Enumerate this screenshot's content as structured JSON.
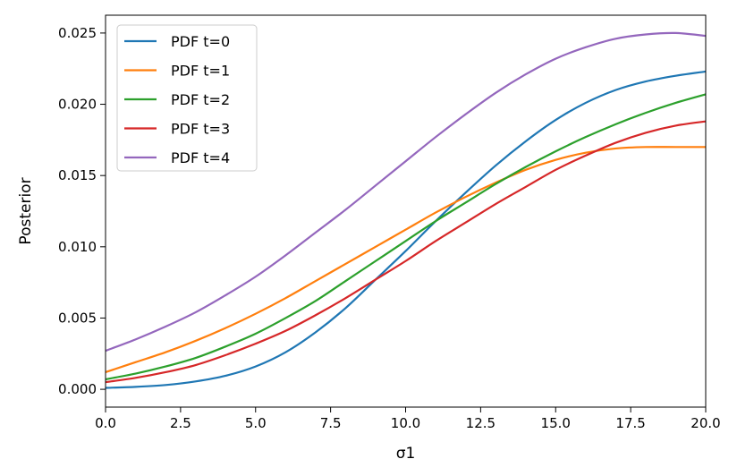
{
  "chart_data": {
    "type": "line",
    "title": "",
    "xlabel": "σ1",
    "ylabel": "Posterior",
    "xlim": [
      0,
      20
    ],
    "ylim": [
      -0.00125,
      0.02625
    ],
    "xticks": [
      0.0,
      2.5,
      5.0,
      7.5,
      10.0,
      12.5,
      15.0,
      17.5,
      20.0
    ],
    "xtick_labels": [
      "0.0",
      "2.5",
      "5.0",
      "7.5",
      "10.0",
      "12.5",
      "15.0",
      "17.5",
      "20.0"
    ],
    "yticks": [
      0.0,
      0.005,
      0.01,
      0.015,
      0.02,
      0.025
    ],
    "ytick_labels": [
      "0.000",
      "0.005",
      "0.010",
      "0.015",
      "0.020",
      "0.025"
    ],
    "grid": false,
    "legend_position": "upper-left",
    "x": [
      0,
      1,
      2,
      3,
      4,
      5,
      6,
      7,
      8,
      9,
      10,
      11,
      12,
      13,
      14,
      15,
      16,
      17,
      18,
      19,
      20
    ],
    "series": [
      {
        "name": "PDF t=0",
        "color": "#1f77b4",
        "values": [
          0.0001,
          0.00017,
          0.0003,
          0.00055,
          0.00095,
          0.0016,
          0.0026,
          0.004,
          0.0057,
          0.0077,
          0.0097,
          0.0118,
          0.0138,
          0.0157,
          0.0174,
          0.0189,
          0.0201,
          0.021,
          0.0216,
          0.022,
          0.0223
        ]
      },
      {
        "name": "PDF t=1",
        "color": "#ff7f0e",
        "values": [
          0.0012,
          0.0019,
          0.0026,
          0.0034,
          0.0043,
          0.0053,
          0.0064,
          0.0076,
          0.0088,
          0.01,
          0.0112,
          0.0124,
          0.0135,
          0.0145,
          0.0154,
          0.0161,
          0.0166,
          0.0169,
          0.017,
          0.017,
          0.017
        ]
      },
      {
        "name": "PDF t=2",
        "color": "#2ca02c",
        "values": [
          0.0007,
          0.0011,
          0.0016,
          0.0022,
          0.003,
          0.0039,
          0.005,
          0.0062,
          0.0076,
          0.009,
          0.0104,
          0.0118,
          0.0131,
          0.0144,
          0.0156,
          0.0167,
          0.0177,
          0.0186,
          0.0194,
          0.0201,
          0.0207
        ]
      },
      {
        "name": "PDF t=3",
        "color": "#d62728",
        "values": [
          0.0005,
          0.0008,
          0.0012,
          0.0017,
          0.0024,
          0.0032,
          0.0041,
          0.0052,
          0.0064,
          0.0077,
          0.009,
          0.0104,
          0.0117,
          0.013,
          0.0142,
          0.0154,
          0.0164,
          0.0173,
          0.018,
          0.0185,
          0.0188
        ]
      },
      {
        "name": "PDF t=4",
        "color": "#9467bd",
        "values": [
          0.0027,
          0.0035,
          0.0044,
          0.0054,
          0.0066,
          0.0079,
          0.0094,
          0.011,
          0.0126,
          0.0143,
          0.016,
          0.0177,
          0.0193,
          0.0208,
          0.0221,
          0.0232,
          0.024,
          0.0246,
          0.0249,
          0.025,
          0.0248
        ]
      }
    ]
  }
}
